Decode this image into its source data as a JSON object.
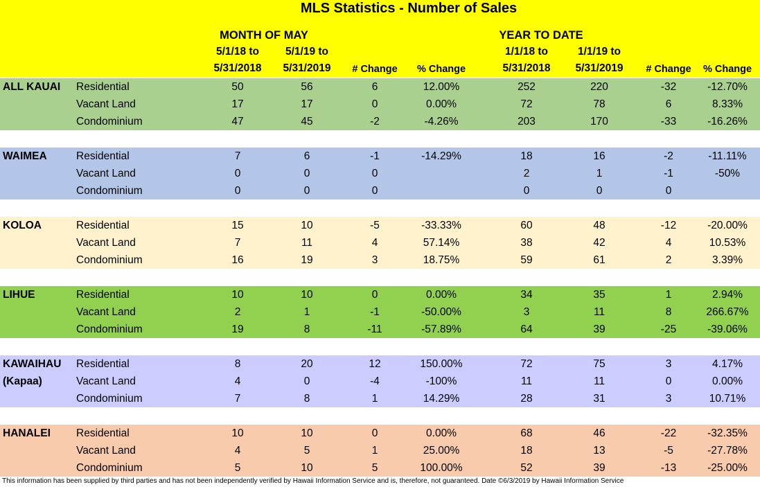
{
  "header": {
    "title": "MLS Statistics - Number of Sales",
    "month_label": "MONTH OF MAY",
    "ytd_label": "YEAR TO DATE",
    "columns": [
      [
        "5/1/18 to",
        "5/31/2018"
      ],
      [
        "5/1/19 to",
        "5/31/2019"
      ],
      [
        "# Change"
      ],
      [
        "% Change"
      ],
      [
        "1/1/18 to",
        "5/31/2018"
      ],
      [
        "1/1/19 to",
        "5/31/2019"
      ],
      [
        "# Change"
      ],
      [
        "% Change"
      ]
    ]
  },
  "groups": [
    {
      "region": [
        "ALL KAUAI"
      ],
      "color": "#a9d08e",
      "rows": [
        {
          "type": "Residential",
          "cells": [
            50,
            56,
            6,
            "12.00%",
            252,
            220,
            -32,
            "-12.70%"
          ]
        },
        {
          "type": "Vacant Land",
          "cells": [
            17,
            17,
            0,
            "0.00%",
            72,
            78,
            6,
            "8.33%"
          ]
        },
        {
          "type": "Condominium",
          "cells": [
            47,
            45,
            -2,
            "-4.26%",
            203,
            170,
            -33,
            "-16.26%"
          ]
        }
      ]
    },
    {
      "region": [
        "WAIMEA"
      ],
      "color": "#b4c6e7",
      "rows": [
        {
          "type": "Residential",
          "cells": [
            7,
            6,
            -1,
            "-14.29%",
            18,
            16,
            -2,
            "-11.11%"
          ]
        },
        {
          "type": "Vacant Land",
          "cells": [
            0,
            0,
            0,
            null,
            2,
            1,
            -1,
            "-50%"
          ]
        },
        {
          "type": "Condominium",
          "cells": [
            0,
            0,
            0,
            null,
            0,
            0,
            0,
            null
          ]
        }
      ]
    },
    {
      "region": [
        "KOLOA"
      ],
      "color": "#fff2cc",
      "rows": [
        {
          "type": "Residential",
          "cells": [
            15,
            10,
            -5,
            "-33.33%",
            60,
            48,
            -12,
            "-20.00%"
          ]
        },
        {
          "type": "Vacant Land",
          "cells": [
            7,
            11,
            4,
            "57.14%",
            38,
            42,
            4,
            "10.53%"
          ]
        },
        {
          "type": "Condominium",
          "cells": [
            16,
            19,
            3,
            "18.75%",
            59,
            61,
            2,
            "3.39%"
          ]
        }
      ]
    },
    {
      "region": [
        "LIHUE"
      ],
      "color": "#92d050",
      "rows": [
        {
          "type": "Residential",
          "cells": [
            10,
            10,
            0,
            "0.00%",
            34,
            35,
            1,
            "2.94%"
          ]
        },
        {
          "type": "Vacant Land",
          "cells": [
            2,
            1,
            -1,
            "-50.00%",
            3,
            11,
            8,
            "266.67%"
          ]
        },
        {
          "type": "Condominium",
          "cells": [
            19,
            8,
            -11,
            "-57.89%",
            64,
            39,
            -25,
            "-39.06%"
          ]
        }
      ]
    },
    {
      "region": [
        "KAWAIHAU",
        "(Kapaa)"
      ],
      "color": "#ccccff",
      "rows": [
        {
          "type": "Residential",
          "cells": [
            8,
            20,
            12,
            "150.00%",
            72,
            75,
            3,
            "4.17%"
          ]
        },
        {
          "type": "Vacant Land",
          "cells": [
            4,
            0,
            -4,
            "-100%",
            11,
            11,
            0,
            "0.00%"
          ]
        },
        {
          "type": "Condominium",
          "cells": [
            7,
            8,
            1,
            "14.29%",
            28,
            31,
            3,
            "10.71%"
          ]
        }
      ]
    },
    {
      "region": [
        "HANALEI"
      ],
      "color": "#f8cbad",
      "rows": [
        {
          "type": "Residential",
          "cells": [
            10,
            10,
            0,
            "0.00%",
            68,
            46,
            -22,
            "-32.35%"
          ]
        },
        {
          "type": "Vacant Land",
          "cells": [
            4,
            5,
            1,
            "25.00%",
            18,
            13,
            -5,
            "-27.78%"
          ]
        },
        {
          "type": "Condominium",
          "cells": [
            5,
            10,
            5,
            "100.00%",
            52,
            39,
            -13,
            "-25.00%"
          ]
        }
      ]
    }
  ],
  "footer": "This information has been supplied by third parties and has not been independently verified by Hawaii Information Service and is, therefore, not guaranteed. Date ©6/3/2019 by Hawaii Information Service"
}
